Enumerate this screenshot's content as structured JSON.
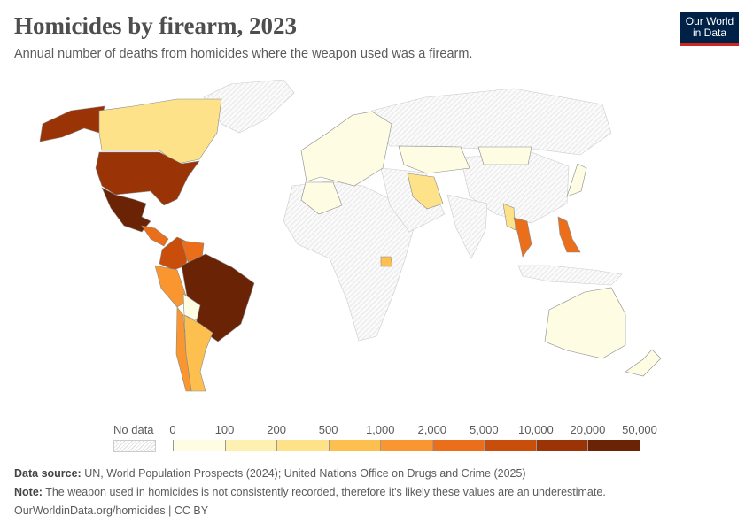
{
  "header": {
    "title": "Homicides by firearm, 2023",
    "subtitle": "Annual number of deaths from homicides where the weapon used was a firearm.",
    "logo_line1": "Our World",
    "logo_line2": "in Data"
  },
  "legend": {
    "no_data_label": "No data",
    "ticks": [
      "0",
      "100",
      "200",
      "500",
      "1,000",
      "2,000",
      "5,000",
      "10,000",
      "20,000",
      "50,000"
    ],
    "colors": [
      "#fffce4",
      "#fef0b0",
      "#fde28a",
      "#fdbf4e",
      "#f99630",
      "#eb6f1a",
      "#c94d0b",
      "#9a3306",
      "#6b2306"
    ],
    "no_data_color": "#e8e8e8"
  },
  "footer": {
    "source_label": "Data source:",
    "source_text": " UN, World Population Prospects (2024); United Nations Office on Drugs and Crime (2025)",
    "note_label": "Note:",
    "note_text": " The weapon used in homicides is not consistently recorded, therefore it's likely these values are an underestimate.",
    "url_text": "OurWorldinData.org/homicides | CC BY"
  },
  "chart_data": {
    "type": "choropleth",
    "title": "Homicides by firearm, 2023",
    "scale": "binned",
    "bins": [
      0,
      100,
      200,
      500,
      1000,
      2000,
      5000,
      10000,
      20000,
      50000
    ]
  }
}
